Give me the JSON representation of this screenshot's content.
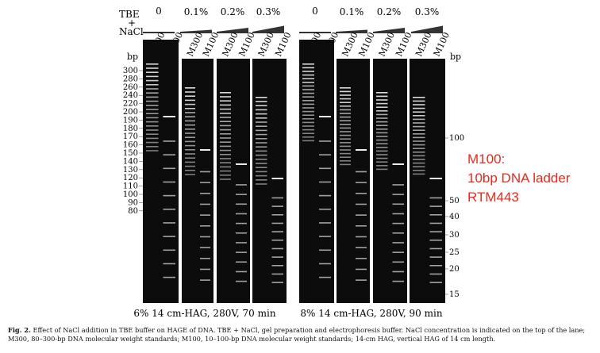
{
  "header": {
    "buffer_label_line1": "TBE",
    "buffer_label_line2": "+",
    "buffer_label_line3": "NaCl",
    "nacl_concentrations": [
      "0",
      "0.1%",
      "0.2%",
      "0.3%"
    ]
  },
  "lane_labels": {
    "m300": "M300",
    "m100": "M100"
  },
  "bp_unit": "bp",
  "left_ladder_ticks": [
    "300",
    "280",
    "260",
    "240",
    "220",
    "200",
    "190",
    "180",
    "170",
    "160",
    "150",
    "140",
    "130",
    "120",
    "110",
    "100",
    "90",
    "80"
  ],
  "right_ladder_ticks": [
    "100",
    "50",
    "40",
    "30",
    "25",
    "20",
    "15"
  ],
  "panel_conditions": [
    "6% 14 cm-HAG, 280V, 70 min",
    "8% 14 cm-HAG, 280V, 90 min"
  ],
  "annotation": {
    "line1": "M100:",
    "line2": "10bp DNA  ladder",
    "line3": "RTM443",
    "color": "#e8291c"
  },
  "caption": {
    "label": "Fig. 2.",
    "text": "Effect of NaCl addition in TBE buffer on HAGE of DNA. TBE + NaCl, gel preparation and electrophoresis buffer. NaCl concentration is indicated on the top of the lane; M300, 80–300-bp DNA molecular weight standards; M100, 10–100-bp DNA molecular weight standards; 14-cm HAG, vertical HAG of 14 cm length."
  }
}
